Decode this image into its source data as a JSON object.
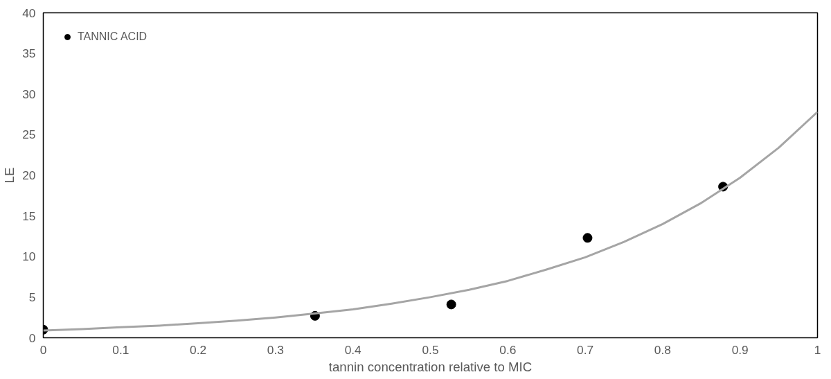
{
  "chart_data": {
    "type": "scatter",
    "xlabel": "tannin concentration relative to MIC",
    "ylabel": "LE",
    "xlim": [
      0,
      1
    ],
    "ylim": [
      0,
      40
    ],
    "xticks": [
      0,
      0.1,
      0.2,
      0.3,
      0.4,
      0.5,
      0.6,
      0.7,
      0.8,
      0.9,
      1
    ],
    "yticks": [
      0,
      5,
      10,
      15,
      20,
      25,
      30,
      35,
      40
    ],
    "grid": false,
    "legend": "top left",
    "marker": "circle",
    "series": [
      {
        "name": "TANNIC ACID",
        "color": "#000000",
        "x": [
          0,
          0.351,
          0.527,
          0.703,
          0.878
        ],
        "values": [
          1.0,
          2.7,
          4.1,
          12.3,
          18.6
        ]
      },
      {
        "type": "line",
        "color": "#a5a5a5",
        "marker": "none",
        "line_style": "solid",
        "x": [
          0,
          0.05,
          0.1,
          0.15,
          0.2,
          0.25,
          0.3,
          0.35,
          0.4,
          0.45,
          0.5,
          0.55,
          0.6,
          0.65,
          0.7,
          0.75,
          0.8,
          0.85,
          0.9,
          0.95,
          1
        ],
        "values": [
          0.9,
          1.07,
          1.3,
          1.5,
          1.8,
          2.12,
          2.5,
          2.98,
          3.5,
          4.2,
          5.0,
          5.9,
          7.0,
          8.4,
          9.9,
          11.8,
          14.0,
          16.6,
          19.7,
          23.4,
          27.8
        ]
      }
    ]
  }
}
